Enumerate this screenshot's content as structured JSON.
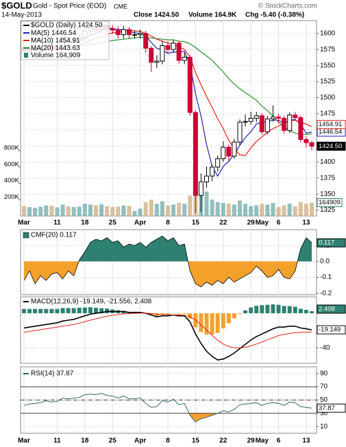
{
  "chart_data": [
    {
      "type": "candlestick",
      "title": "$GOLD",
      "subtitle": "Gold - Spot Price (EOD)",
      "exchange": "CME",
      "source": "© StockCharts.com",
      "date": "14-May-2013",
      "close_text": "Close 1424.50",
      "volume_text": "Volume 164.9K",
      "change_text": "Chg -5.40 (-0.38%)",
      "legend_title": "$GOLD (Daily) 1424.50",
      "last_close_label": "1424.50",
      "volume_legend": "Volume 164,909",
      "categories": [
        "Mar",
        null,
        null,
        null,
        null,
        null,
        "11",
        null,
        null,
        null,
        null,
        "18",
        null,
        null,
        null,
        null,
        "25",
        null,
        null,
        null,
        null,
        "Apr",
        null,
        null,
        null,
        null,
        "8",
        null,
        null,
        null,
        null,
        "15",
        null,
        null,
        null,
        null,
        "22",
        null,
        null,
        null,
        null,
        "29",
        null,
        "May",
        null,
        null,
        "6",
        null,
        null,
        null,
        null,
        "13",
        null
      ],
      "open": [
        1578,
        1572,
        1574,
        1575,
        1576,
        1581,
        1577,
        1579,
        1590,
        1588,
        1590,
        1593,
        1604,
        1608,
        1606,
        1613,
        1607,
        1605,
        1598,
        1606,
        1598,
        1598,
        1600,
        1577,
        1555,
        1557,
        1581,
        1575,
        1585,
        1558,
        1563,
        1477,
        1348,
        1369,
        1378,
        1392,
        1405,
        1423,
        1409,
        1431,
        1462,
        1463,
        1468,
        1472,
        1447,
        1467,
        1470,
        1468,
        1449,
        1473,
        1469,
        1435,
        1430
      ],
      "high": [
        1584,
        1580,
        1581,
        1582,
        1587,
        1587,
        1585,
        1596,
        1596,
        1596,
        1599,
        1610,
        1615,
        1614,
        1617,
        1618,
        1613,
        1611,
        1612,
        1610,
        1604,
        1606,
        1604,
        1580,
        1566,
        1588,
        1588,
        1590,
        1588,
        1570,
        1566,
        1480,
        1382,
        1393,
        1396,
        1410,
        1432,
        1427,
        1436,
        1466,
        1474,
        1478,
        1478,
        1476,
        1472,
        1488,
        1475,
        1472,
        1477,
        1478,
        1472,
        1440,
        1433
      ],
      "low": [
        1566,
        1566,
        1568,
        1569,
        1570,
        1571,
        1571,
        1573,
        1582,
        1582,
        1584,
        1587,
        1598,
        1600,
        1600,
        1601,
        1599,
        1592,
        1592,
        1592,
        1592,
        1592,
        1570,
        1540,
        1546,
        1552,
        1568,
        1570,
        1553,
        1552,
        1472,
        1321,
        1322,
        1360,
        1370,
        1385,
        1400,
        1402,
        1405,
        1426,
        1455,
        1458,
        1462,
        1442,
        1443,
        1463,
        1460,
        1444,
        1445,
        1464,
        1430,
        1422,
        1418
      ],
      "close": [
        1572,
        1574,
        1575,
        1576,
        1581,
        1577,
        1579,
        1590,
        1588,
        1590,
        1593,
        1604,
        1608,
        1606,
        1613,
        1607,
        1605,
        1598,
        1606,
        1598,
        1598,
        1600,
        1577,
        1555,
        1557,
        1581,
        1575,
        1585,
        1558,
        1563,
        1477,
        1348,
        1369,
        1378,
        1392,
        1405,
        1423,
        1409,
        1431,
        1462,
        1463,
        1468,
        1472,
        1447,
        1467,
        1470,
        1468,
        1449,
        1473,
        1469,
        1435,
        1430,
        1424.5
      ],
      "up_color": "#000000",
      "down_color": "#cc0033",
      "series": [
        {
          "name": "MA(5)",
          "color": "#1f1fb4",
          "values": [
            1577,
            1575,
            1574,
            1574,
            1576,
            1577,
            1578,
            1581,
            1583,
            1585,
            1588,
            1593,
            1597,
            1600,
            1605,
            1608,
            1608,
            1606,
            1606,
            1603,
            1601,
            1600,
            1596,
            1586,
            1577,
            1574,
            1569,
            1571,
            1571,
            1572,
            1552,
            1506,
            1471,
            1427,
            1393,
            1378,
            1393,
            1401,
            1412,
            1426,
            1438,
            1447,
            1459,
            1462,
            1463,
            1465,
            1465,
            1460,
            1465,
            1466,
            1459,
            1445,
            1446.54
          ]
        },
        {
          "name": "MA(10)",
          "color": "#e0201b",
          "values": [
            1577,
            1576,
            1576,
            1575,
            1576,
            1576,
            1576,
            1578,
            1579,
            1580,
            1582,
            1585,
            1589,
            1592,
            1595,
            1598,
            1601,
            1602,
            1604,
            1605,
            1604,
            1603,
            1600,
            1596,
            1591,
            1588,
            1585,
            1583,
            1579,
            1575,
            1564,
            1539,
            1520,
            1502,
            1485,
            1467,
            1452,
            1434,
            1421,
            1411,
            1410,
            1422,
            1432,
            1439,
            1446,
            1452,
            1456,
            1460,
            1464,
            1465,
            1462,
            1459,
            1454.91
          ]
        },
        {
          "name": "MA(20)",
          "color": "#2e8b2e",
          "values": [
            1600,
            1595,
            1591,
            1588,
            1585,
            1583,
            1581,
            1580,
            1580,
            1580,
            1580,
            1581,
            1583,
            1584,
            1586,
            1587,
            1589,
            1590,
            1591,
            1592,
            1593,
            1594,
            1594,
            1593,
            1592,
            1591,
            1590,
            1590,
            1588,
            1587,
            1584,
            1578,
            1571,
            1565,
            1558,
            1549,
            1540,
            1530,
            1521,
            1514,
            1508,
            1502,
            1496,
            1487,
            1480,
            1471,
            1462,
            1455,
            1449,
            1445,
            1443,
            1443,
            1443.63
          ]
        }
      ],
      "volume": {
        "values": [
          120000,
          110000,
          100000,
          115000,
          130000,
          125000,
          105000,
          140000,
          120000,
          110000,
          115000,
          150000,
          140000,
          130000,
          145000,
          120000,
          110000,
          115000,
          130000,
          125000,
          60000,
          90000,
          170000,
          200000,
          150000,
          180000,
          130000,
          140000,
          160000,
          150000,
          250000,
          640000,
          350000,
          300000,
          200000,
          170000,
          160000,
          150000,
          140000,
          190000,
          150000,
          120000,
          130000,
          150000,
          140000,
          160000,
          110000,
          130000,
          150000,
          120000,
          170000,
          150000,
          164909
        ],
        "up_color": "#7fb3b3",
        "down_color": "#d2b48c",
        "vlim": [
          0,
          2400000
        ],
        "vticks": [
          {
            "value": 200000,
            "label": "200K"
          },
          {
            "value": 400000,
            "label": "400K"
          },
          {
            "value": 600000,
            "label": "600K"
          },
          {
            "value": 800000,
            "label": "800K"
          }
        ]
      },
      "ylim": [
        1316,
        1620
      ],
      "yticks": [
        1325,
        1350,
        1375,
        1400,
        1425,
        1450,
        1475,
        1500,
        1525,
        1550,
        1575,
        1600
      ],
      "grid": true
    },
    {
      "type": "area",
      "title": "CMF(20) 0.117",
      "pos_color": "#2e8070",
      "neg_color": "#f4a12c",
      "values": [
        -0.12,
        -0.06,
        -0.14,
        -0.09,
        -0.12,
        -0.08,
        -0.07,
        -0.11,
        -0.06,
        -0.09,
        0.01,
        0.06,
        0.12,
        0.14,
        0.13,
        0.15,
        0.12,
        0.13,
        0.09,
        0.11,
        0.1,
        0.12,
        0.09,
        0.12,
        0.14,
        0.16,
        0.13,
        0.15,
        0.1,
        0.11,
        -0.06,
        -0.14,
        -0.16,
        -0.13,
        -0.15,
        -0.12,
        -0.14,
        -0.1,
        -0.13,
        -0.11,
        -0.09,
        -0.07,
        -0.03,
        -0.06,
        -0.1,
        -0.09,
        -0.05,
        -0.1,
        -0.11,
        -0.06,
        0.08,
        0.15,
        0.117
      ],
      "ylim": [
        -0.21,
        0.2
      ],
      "yticks": [
        0.1,
        {
          "value": 0,
          "label": "0.0"
        },
        -0.1,
        -0.2
      ],
      "grid": true
    },
    {
      "type": "macd",
      "title": "MACD(12,26,9) -19.149, -21.556, 2.408",
      "series": [
        {
          "color": "#000000",
          "values": [
            -17,
            -16,
            -15,
            -14,
            -13,
            -12,
            -11,
            -9,
            -8,
            -7,
            -5,
            -3,
            -1,
            0,
            1,
            2,
            2,
            2,
            2,
            1,
            1,
            1,
            0,
            -2,
            -4,
            -3,
            -3,
            -2,
            -3,
            -3,
            -10,
            -24,
            -35,
            -44,
            -50,
            -54,
            -53,
            -50,
            -46,
            -41,
            -36,
            -31,
            -27,
            -24,
            -21,
            -18,
            -16,
            -16,
            -15,
            -15,
            -17,
            -18,
            -19.149
          ]
        },
        {
          "color": "#e0201b",
          "values": [
            -22,
            -21,
            -20,
            -19,
            -18,
            -17,
            -16,
            -15,
            -14,
            -13,
            -11.4,
            -9.7,
            -8,
            -6.4,
            -4.9,
            -3.5,
            -2.4,
            -1.5,
            -0.8,
            -0.4,
            -0.1,
            0.1,
            0.1,
            -0.3,
            -1,
            -1.4,
            -1.7,
            -1.8,
            -2,
            -2.2,
            -3.8,
            -7.8,
            -13.2,
            -19.4,
            -25.5,
            -31.2,
            -35.6,
            -38.5,
            -40,
            -40.2,
            -39.4,
            -37.7,
            -35.6,
            -33.3,
            -30.8,
            -28.3,
            -25.8,
            -24.5,
            -23.3,
            -22.6,
            -22.2,
            -21.9,
            -21.556
          ]
        }
      ],
      "histogram": {
        "pos_color": "#2e8070",
        "neg_color": "#f4a12c",
        "values": [
          5,
          5,
          5,
          5,
          5,
          5,
          5,
          6,
          6,
          6,
          6.4,
          6.7,
          7,
          6.4,
          5.9,
          5.5,
          4.4,
          3.5,
          2.8,
          1.4,
          1.1,
          0.9,
          -0.1,
          -1.7,
          -3,
          -1.6,
          -1.3,
          -0.2,
          -1,
          -0.8,
          -6.2,
          -16.2,
          -21.8,
          -24.6,
          -24.5,
          -22.8,
          -17.4,
          -11.5,
          -6,
          -0.8,
          3.4,
          6.7,
          8.6,
          9.3,
          9.8,
          10.3,
          9.8,
          8.5,
          8.3,
          7.6,
          5.2,
          3.9,
          2.408
        ]
      },
      "ylim": [
        -58,
        19
      ],
      "yticks": [
        -40
      ],
      "grid": true
    },
    {
      "type": "rsi",
      "title": "RSI(14) 37.87",
      "color": "#2f6666",
      "high_color": "#2e8070",
      "low_color": "#f4a12c",
      "values": [
        42,
        44,
        45,
        46,
        49,
        47,
        48,
        53,
        52,
        53,
        54,
        58,
        59,
        58,
        60,
        57,
        56,
        53,
        56,
        52,
        52,
        53,
        45,
        39,
        40,
        49,
        47,
        51,
        43,
        45,
        27,
        17,
        22,
        24,
        27,
        30,
        34,
        32,
        36,
        43,
        44,
        45,
        46,
        42,
        45,
        46,
        45,
        42,
        47,
        46,
        40,
        39,
        37.87
      ],
      "levels": [
        30,
        50,
        70
      ],
      "level_styles": [
        "solid",
        "dashdot",
        "solid"
      ],
      "ylim": [
        0,
        100
      ],
      "yticks": [
        10,
        30,
        50,
        70,
        90
      ],
      "grid": true
    }
  ]
}
